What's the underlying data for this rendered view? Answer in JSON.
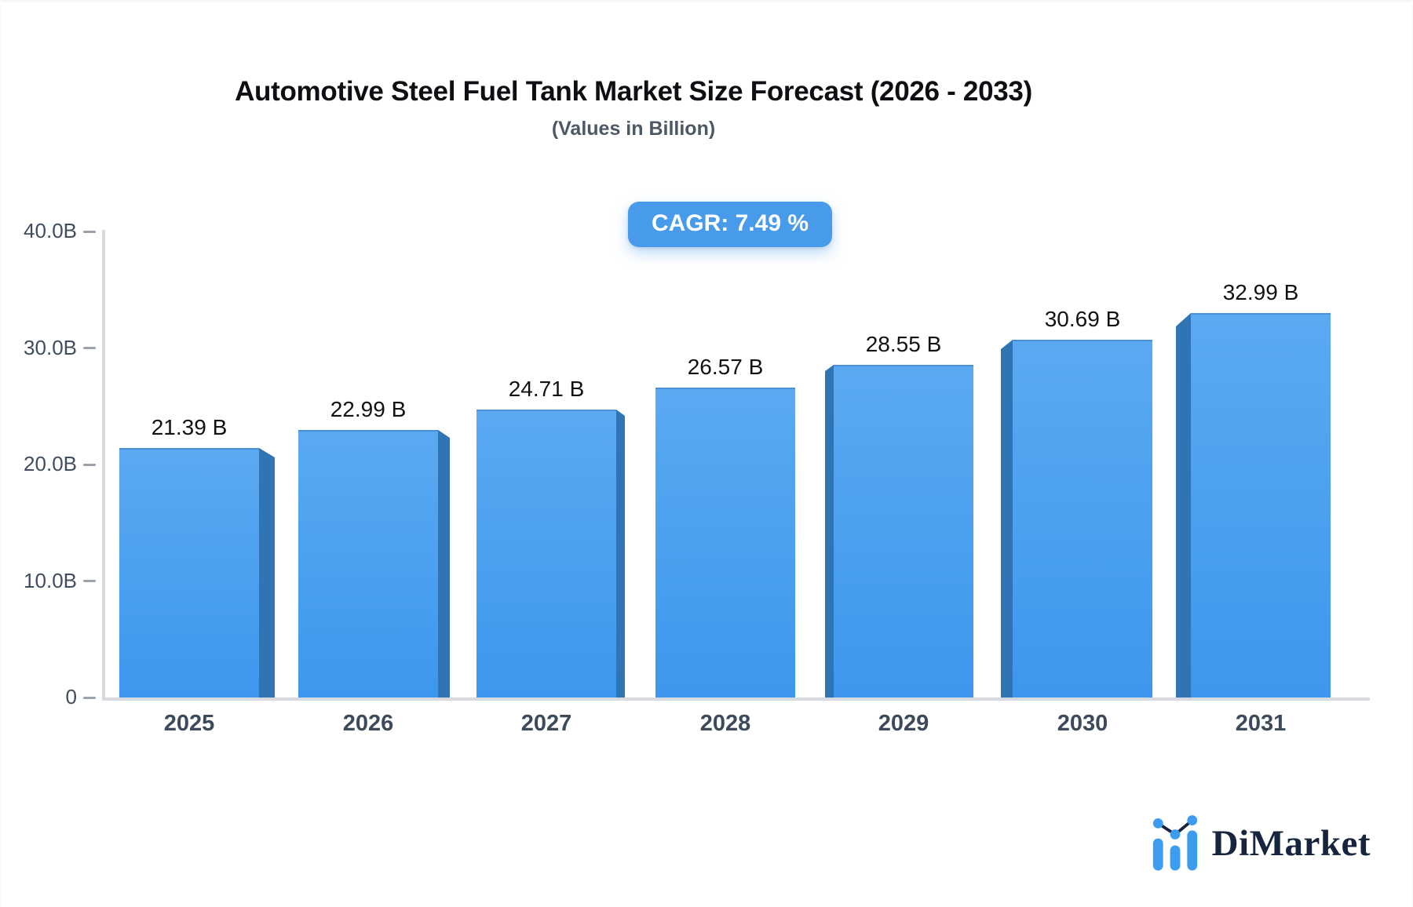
{
  "header": {
    "title": "Automotive Steel Fuel Tank Market Size Forecast (2026 - 2033)",
    "subtitle": "(Values in Billion)",
    "cagr_label": "CAGR: 7.49 %"
  },
  "y_axis": {
    "ticks": [
      {
        "value": 0,
        "label": "0"
      },
      {
        "value": 10,
        "label": "10.0B"
      },
      {
        "value": 20,
        "label": "20.0B"
      },
      {
        "value": 30,
        "label": "30.0B"
      },
      {
        "value": 40,
        "label": "40.0B"
      }
    ]
  },
  "bars": [
    {
      "year": "2025",
      "value": 21.39,
      "label": "21.39 B"
    },
    {
      "year": "2026",
      "value": 22.99,
      "label": "22.99 B"
    },
    {
      "year": "2027",
      "value": 24.71,
      "label": "24.71 B"
    },
    {
      "year": "2028",
      "value": 26.57,
      "label": "26.57 B"
    },
    {
      "year": "2029",
      "value": 28.55,
      "label": "28.55 B"
    },
    {
      "year": "2030",
      "value": 30.69,
      "label": "30.69 B"
    },
    {
      "year": "2031",
      "value": 32.99,
      "label": "32.99 B"
    }
  ],
  "footer": {
    "logo_text": "DiMarket"
  },
  "colors": {
    "bar_face_top": "#5ba9f1",
    "bar_face_bottom": "#3d97ee",
    "bar_face_edge": "#4a90d4",
    "bar_side": "#3174b4",
    "badge_bg": "#479bea",
    "axis_line": "#d7dbe1",
    "tick_dash": "#98a1ac",
    "logo_blue": "#3b9cf0",
    "logo_navy": "#16243e"
  },
  "chart_data": {
    "type": "bar",
    "title": "Automotive Steel Fuel Tank Market Size Forecast (2026 - 2033)",
    "subtitle": "(Values in Billion)",
    "annotation": "CAGR: 7.49 %",
    "categories": [
      "2025",
      "2026",
      "2027",
      "2028",
      "2029",
      "2030",
      "2031"
    ],
    "values": [
      21.39,
      22.99,
      24.71,
      26.57,
      28.55,
      30.69,
      32.99
    ],
    "data_labels": [
      "21.39 B",
      "22.99 B",
      "24.71 B",
      "26.57 B",
      "28.55 B",
      "30.69 B",
      "32.99 B"
    ],
    "xlabel": "",
    "ylabel": "",
    "ylim": [
      0,
      40
    ],
    "ytick_labels": [
      "0",
      "10.0B",
      "20.0B",
      "30.0B",
      "40.0B"
    ],
    "grid": false,
    "legend": "none",
    "bar_style": "3d-beveled",
    "bar_color": "#3d97ee"
  }
}
